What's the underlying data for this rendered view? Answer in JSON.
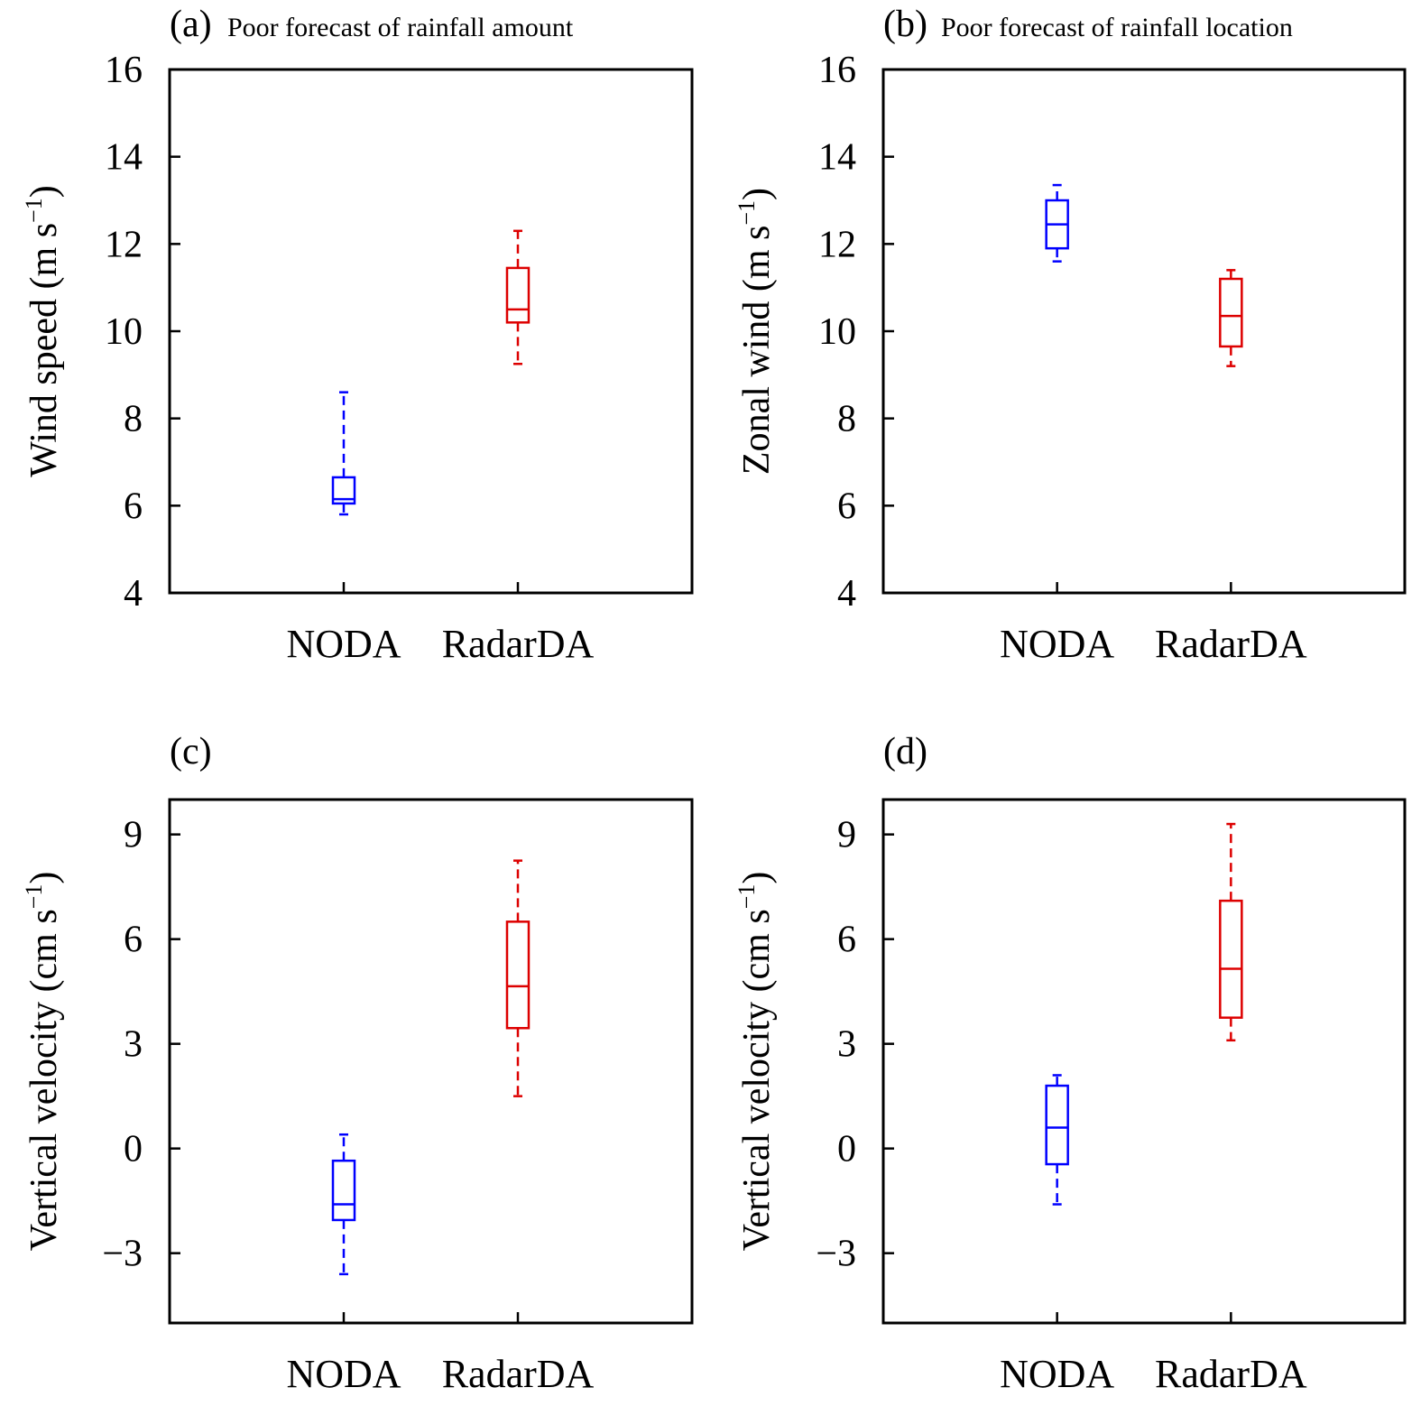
{
  "chart_data": [
    {
      "type": "box",
      "panel_label": "(a)",
      "title": "Poor forecast of rainfall amount",
      "ylabel": "Wind speed (m s",
      "ylabel_sup": "−1",
      "ylabel_close": ")",
      "ylim": [
        4,
        16
      ],
      "yticks": [
        4,
        6,
        8,
        10,
        12,
        14,
        16
      ],
      "ytick_labels": [
        "4",
        "6",
        "8",
        "10",
        "12",
        "14",
        "16"
      ],
      "categories": [
        "NODA",
        "RadarDA"
      ],
      "series": [
        {
          "name": "NODA",
          "color": "#0000ff",
          "min": 5.8,
          "q1": 6.05,
          "median": 6.15,
          "q3": 6.65,
          "max": 8.6
        },
        {
          "name": "RadarDA",
          "color": "#dd0000",
          "min": 9.25,
          "q1": 10.2,
          "median": 10.5,
          "q3": 11.45,
          "max": 12.3
        }
      ]
    },
    {
      "type": "box",
      "panel_label": "(b)",
      "title": "Poor forecast of rainfall location",
      "ylabel": "Zonal wind (m s",
      "ylabel_sup": "−1",
      "ylabel_close": ")",
      "ylim": [
        4,
        16
      ],
      "yticks": [
        4,
        6,
        8,
        10,
        12,
        14,
        16
      ],
      "ytick_labels": [
        "4",
        "6",
        "8",
        "10",
        "12",
        "14",
        "16"
      ],
      "categories": [
        "NODA",
        "RadarDA"
      ],
      "series": [
        {
          "name": "NODA",
          "color": "#0000ff",
          "min": 11.6,
          "q1": 11.9,
          "median": 12.45,
          "q3": 13.0,
          "max": 13.35
        },
        {
          "name": "RadarDA",
          "color": "#dd0000",
          "min": 9.2,
          "q1": 9.65,
          "median": 10.35,
          "q3": 11.2,
          "max": 11.4
        }
      ]
    },
    {
      "type": "box",
      "panel_label": "(c)",
      "title": "",
      "ylabel": "Vertical velocity (cm s",
      "ylabel_sup": "−1",
      "ylabel_close": ")",
      "ylim": [
        -5,
        10
      ],
      "yticks": [
        -3,
        0,
        3,
        6,
        9
      ],
      "ytick_labels": [
        "−3",
        "0",
        "3",
        "6",
        "9"
      ],
      "categories": [
        "NODA",
        "RadarDA"
      ],
      "series": [
        {
          "name": "NODA",
          "color": "#0000ff",
          "min": -3.6,
          "q1": -2.05,
          "median": -1.6,
          "q3": -0.35,
          "max": 0.4
        },
        {
          "name": "RadarDA",
          "color": "#dd0000",
          "min": 1.5,
          "q1": 3.45,
          "median": 4.65,
          "q3": 6.5,
          "max": 8.25
        }
      ]
    },
    {
      "type": "box",
      "panel_label": "(d)",
      "title": "",
      "ylabel": "Vertical velocity (cm s",
      "ylabel_sup": "−1",
      "ylabel_close": ")",
      "ylim": [
        -5,
        10
      ],
      "yticks": [
        -3,
        0,
        3,
        6,
        9
      ],
      "ytick_labels": [
        "−3",
        "0",
        "3",
        "6",
        "9"
      ],
      "categories": [
        "NODA",
        "RadarDA"
      ],
      "series": [
        {
          "name": "NODA",
          "color": "#0000ff",
          "min": -1.6,
          "q1": -0.45,
          "median": 0.6,
          "q3": 1.8,
          "max": 2.1
        },
        {
          "name": "RadarDA",
          "color": "#dd0000",
          "min": 3.1,
          "q1": 3.75,
          "median": 5.15,
          "q3": 7.1,
          "max": 9.3
        }
      ]
    }
  ]
}
